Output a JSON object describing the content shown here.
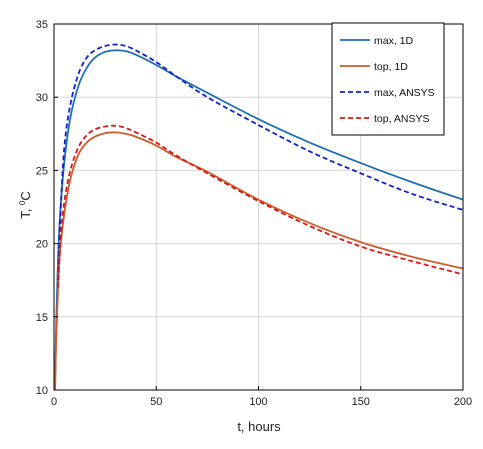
{
  "chart_data": {
    "type": "line",
    "xlabel": "t, hours",
    "ylabel": "T, ",
    "ylabel_superscript": "0",
    "ylabel_unit": "C",
    "xlim": [
      0,
      200
    ],
    "ylim": [
      10,
      35
    ],
    "xticks": [
      0,
      50,
      100,
      150,
      200
    ],
    "yticks": [
      10,
      15,
      20,
      25,
      30,
      35
    ],
    "grid": true,
    "legend_position": "top-right",
    "series": [
      {
        "name": "max, 1D",
        "color": "#1f6eb4",
        "style": "solid",
        "x": [
          0.5,
          1,
          2,
          3,
          5,
          8,
          12,
          16,
          20,
          25,
          30,
          35,
          40,
          50,
          60,
          75,
          100,
          125,
          150,
          175,
          200
        ],
        "y": [
          10,
          14,
          19,
          22,
          25.5,
          28.6,
          30.8,
          32,
          32.7,
          33.1,
          33.2,
          33.15,
          32.9,
          32.2,
          31.4,
          30.3,
          28.5,
          26.9,
          25.5,
          24.2,
          23.0
        ]
      },
      {
        "name": "top, 1D",
        "color": "#d05a2a",
        "style": "solid",
        "x": [
          0.5,
          1,
          2,
          3,
          5,
          8,
          12,
          16,
          20,
          25,
          30,
          35,
          40,
          50,
          60,
          75,
          100,
          125,
          150,
          175,
          200
        ],
        "y": [
          10,
          13,
          17,
          19.5,
          22,
          24.4,
          26.1,
          26.9,
          27.3,
          27.55,
          27.6,
          27.5,
          27.3,
          26.7,
          25.9,
          24.9,
          23.0,
          21.4,
          20.1,
          19.1,
          18.3
        ]
      },
      {
        "name": "max, ANSYS",
        "color": "#1020d0",
        "style": "dashed",
        "x": [
          2,
          3,
          5,
          8,
          12,
          16,
          20,
          25,
          30,
          35,
          40,
          50,
          60,
          75,
          100,
          125,
          150,
          175,
          200
        ],
        "y": [
          17.5,
          21.5,
          26.5,
          29.5,
          31.6,
          32.7,
          33.2,
          33.5,
          33.6,
          33.5,
          33.2,
          32.4,
          31.4,
          30.0,
          28.1,
          26.3,
          24.8,
          23.4,
          22.3
        ]
      },
      {
        "name": "top, ANSYS",
        "color": "#d81818",
        "style": "dashed",
        "x": [
          2,
          3,
          5,
          8,
          12,
          16,
          20,
          25,
          30,
          35,
          40,
          50,
          60,
          75,
          100,
          125,
          150,
          175,
          200
        ],
        "y": [
          17.0,
          20.0,
          22.8,
          25.0,
          26.6,
          27.4,
          27.8,
          28.0,
          28.05,
          27.9,
          27.6,
          26.9,
          26.0,
          24.8,
          22.9,
          21.2,
          19.8,
          18.8,
          17.9
        ]
      }
    ]
  }
}
